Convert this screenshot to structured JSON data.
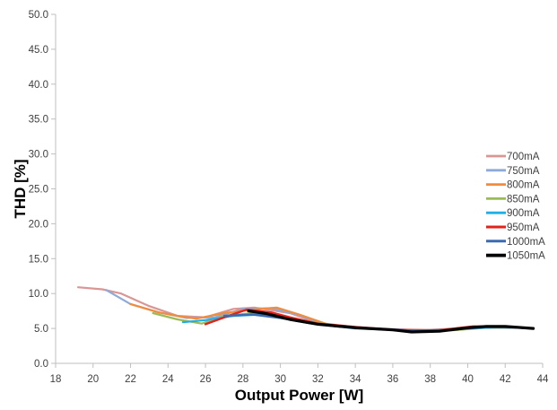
{
  "chart_data": {
    "type": "line",
    "title": "",
    "xlabel": "Output Power [W]",
    "ylabel": "THD [%]",
    "xlim": [
      18,
      44
    ],
    "ylim": [
      0,
      50
    ],
    "x_ticks": [
      "18",
      "20",
      "22",
      "24",
      "26",
      "28",
      "30",
      "32",
      "34",
      "36",
      "38",
      "40",
      "42",
      "44"
    ],
    "y_ticks": [
      "0.0",
      "5.0",
      "10.0",
      "15.0",
      "20.0",
      "25.0",
      "30.0",
      "35.0",
      "40.0",
      "45.0",
      "50.0"
    ],
    "grid": false,
    "legend_position": "right",
    "series": [
      {
        "name": "700mA",
        "color": "#d99694",
        "width": 2.2,
        "points": [
          [
            19.2,
            10.9
          ],
          [
            20.5,
            10.6
          ],
          [
            21.5,
            10.0
          ],
          [
            23.0,
            8.2
          ],
          [
            24.5,
            6.8
          ],
          [
            26.0,
            6.6
          ],
          [
            27.5,
            7.8
          ],
          [
            28.6,
            8.0
          ],
          [
            30.5,
            7.2
          ],
          [
            32.0,
            5.8
          ],
          [
            34.0,
            5.2
          ],
          [
            36.0,
            4.9
          ],
          [
            38.0,
            4.8
          ],
          [
            40.0,
            5.1
          ],
          [
            42.0,
            5.2
          ],
          [
            43.5,
            5.0
          ]
        ]
      },
      {
        "name": "750mA",
        "color": "#8eaad8",
        "width": 2.2,
        "points": [
          [
            20.7,
            10.5
          ],
          [
            22.0,
            8.5
          ],
          [
            23.5,
            7.3
          ],
          [
            25.0,
            6.5
          ],
          [
            26.5,
            6.6
          ],
          [
            28.0,
            7.8
          ],
          [
            29.5,
            7.9
          ],
          [
            31.0,
            6.9
          ],
          [
            32.5,
            5.5
          ],
          [
            34.5,
            5.0
          ],
          [
            36.5,
            4.7
          ],
          [
            38.5,
            4.7
          ],
          [
            40.5,
            5.1
          ],
          [
            42.5,
            5.1
          ],
          [
            43.5,
            5.0
          ]
        ]
      },
      {
        "name": "800mA",
        "color": "#f08c3c",
        "width": 2.2,
        "points": [
          [
            22.0,
            8.5
          ],
          [
            23.5,
            7.3
          ],
          [
            24.5,
            6.8
          ],
          [
            25.5,
            6.4
          ],
          [
            27.0,
            7.2
          ],
          [
            28.5,
            7.7
          ],
          [
            29.8,
            8.0
          ],
          [
            31.0,
            7.0
          ],
          [
            32.5,
            5.6
          ],
          [
            34.5,
            5.0
          ],
          [
            36.5,
            4.7
          ],
          [
            38.0,
            4.7
          ],
          [
            40.0,
            5.1
          ],
          [
            42.0,
            5.2
          ],
          [
            43.5,
            5.0
          ]
        ]
      },
      {
        "name": "850mA",
        "color": "#9bbb59",
        "width": 2.2,
        "points": [
          [
            23.2,
            7.2
          ],
          [
            24.5,
            6.3
          ],
          [
            25.8,
            5.7
          ],
          [
            27.0,
            6.8
          ],
          [
            28.5,
            7.2
          ],
          [
            30.0,
            6.8
          ],
          [
            31.5,
            6.0
          ],
          [
            33.0,
            5.4
          ],
          [
            35.0,
            5.0
          ],
          [
            37.0,
            4.6
          ],
          [
            39.0,
            4.7
          ],
          [
            41.0,
            5.1
          ],
          [
            43.0,
            5.1
          ],
          [
            43.5,
            5.0
          ]
        ]
      },
      {
        "name": "900mA",
        "color": "#1faee6",
        "width": 2.2,
        "points": [
          [
            24.8,
            5.9
          ],
          [
            26.0,
            6.2
          ],
          [
            27.5,
            6.8
          ],
          [
            29.0,
            7.0
          ],
          [
            30.5,
            6.5
          ],
          [
            32.0,
            5.6
          ],
          [
            34.0,
            5.0
          ],
          [
            36.0,
            4.8
          ],
          [
            38.0,
            4.6
          ],
          [
            40.0,
            5.0
          ],
          [
            42.0,
            5.2
          ],
          [
            43.5,
            5.0
          ]
        ]
      },
      {
        "name": "950mA",
        "color": "#e3231b",
        "width": 2.4,
        "points": [
          [
            26.0,
            5.6
          ],
          [
            27.0,
            6.6
          ],
          [
            28.2,
            7.7
          ],
          [
            29.5,
            7.3
          ],
          [
            30.5,
            6.6
          ],
          [
            32.0,
            5.7
          ],
          [
            34.0,
            5.2
          ],
          [
            36.0,
            4.8
          ],
          [
            38.0,
            4.6
          ],
          [
            40.3,
            5.3
          ],
          [
            42.0,
            5.3
          ],
          [
            43.5,
            5.0
          ]
        ]
      },
      {
        "name": "1000mA",
        "color": "#3b6bb0",
        "width": 2.4,
        "points": [
          [
            27.0,
            6.8
          ],
          [
            28.5,
            7.0
          ],
          [
            30.0,
            6.5
          ],
          [
            31.5,
            5.8
          ],
          [
            33.0,
            5.3
          ],
          [
            35.0,
            5.0
          ],
          [
            37.0,
            4.7
          ],
          [
            39.0,
            4.8
          ],
          [
            41.0,
            5.2
          ],
          [
            43.0,
            5.1
          ],
          [
            43.5,
            5.0
          ]
        ]
      },
      {
        "name": "1050mA",
        "color": "#000000",
        "width": 3.2,
        "points": [
          [
            28.3,
            7.5
          ],
          [
            29.3,
            7.1
          ],
          [
            30.5,
            6.3
          ],
          [
            32.0,
            5.6
          ],
          [
            34.0,
            5.1
          ],
          [
            36.0,
            4.8
          ],
          [
            37.0,
            4.5
          ],
          [
            38.5,
            4.6
          ],
          [
            40.0,
            5.1
          ],
          [
            41.0,
            5.3
          ],
          [
            42.0,
            5.3
          ],
          [
            43.5,
            5.0
          ]
        ]
      }
    ]
  }
}
